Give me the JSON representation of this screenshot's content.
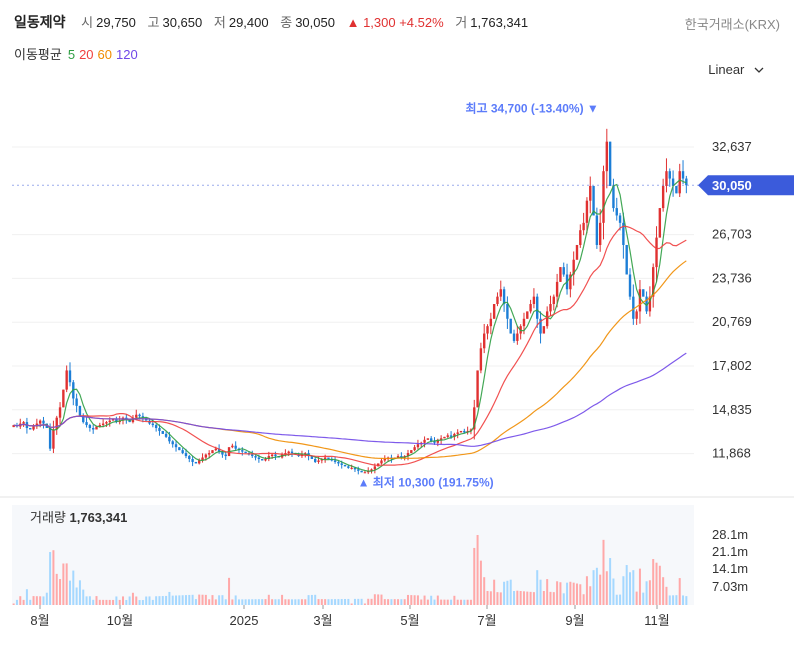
{
  "header": {
    "name": "일동제약",
    "open_label": "시",
    "open": "29,750",
    "high_label": "고",
    "high": "30,650",
    "low_label": "저",
    "low": "29,400",
    "close_label": "종",
    "close": "30,050",
    "change": "▲ 1,300 +4.52%",
    "volume_label": "거",
    "volume": "1,763,341",
    "exchange": "한국거래소(KRX)"
  },
  "ma": {
    "label": "이동평균",
    "periods": [
      "5",
      "20",
      "60",
      "120"
    ],
    "colors": [
      "#2f9e44",
      "#f03e3e",
      "#f08c00",
      "#7048e8"
    ]
  },
  "scale_selector": {
    "label": "Linear",
    "icon": "chevron-down-icon"
  },
  "colors": {
    "up": "#e03131",
    "down": "#1c7ed6",
    "price_tag": "#3b5bdb"
  },
  "chart_data": [
    {
      "type": "candlestick",
      "title": "",
      "price_ticks": [
        11868,
        14835,
        17802,
        20769,
        23736,
        26703,
        32637
      ],
      "price_tick_labels": [
        "11,868",
        "14,835",
        "17,802",
        "20,769",
        "23,736",
        "26,703",
        "32,637"
      ],
      "ylim": [
        9400,
        36500
      ],
      "x_tick_labels": [
        "8월",
        "10월",
        "2025",
        "3월",
        "5월",
        "7월",
        "9월",
        "11월"
      ],
      "current_price": 30050,
      "current_price_label": "30,050",
      "high_annotation": {
        "value": 34700,
        "text": "최고 34,700 (-13.40%) ▼"
      },
      "low_annotation": {
        "value": 10300,
        "text": "▲ 최저 10,300 (191.75%)"
      },
      "close_series": [
        13800,
        13700,
        13900,
        14000,
        13600,
        13500,
        13700,
        13900,
        14100,
        13900,
        13600,
        12200,
        13500,
        14300,
        15000,
        16200,
        17500,
        16700,
        15600,
        15100,
        14400,
        14000,
        13800,
        13600,
        13500,
        13700,
        13800,
        13900,
        14000,
        14100,
        14200,
        14000,
        14100,
        14300,
        14200,
        14000,
        14300,
        14500,
        14400,
        14300,
        14100,
        13900,
        13800,
        13600,
        13400,
        13200,
        13000,
        12700,
        12500,
        12300,
        12100,
        11900,
        11700,
        11500,
        11300,
        11200,
        11400,
        11600,
        11800,
        11900,
        12100,
        12200,
        12000,
        11800,
        11700,
        12300,
        12400,
        12200,
        12100,
        12000,
        11900,
        11800,
        11700,
        11600,
        11500,
        11400,
        11500,
        11700,
        11800,
        11700,
        11600,
        11800,
        11900,
        12000,
        11900,
        11800,
        11700,
        11800,
        11900,
        11700,
        11500,
        11300,
        11400,
        11500,
        11600,
        11500,
        11400,
        11300,
        11200,
        11100,
        11000,
        10900,
        10900,
        10800,
        10700,
        10600,
        10600,
        10700,
        10800,
        11000,
        11200,
        11400,
        11500,
        11600,
        11500,
        11600,
        11700,
        11600,
        11700,
        11900,
        12100,
        12300,
        12500,
        12600,
        12800,
        12900,
        12700,
        12600,
        12800,
        12900,
        13000,
        13100,
        13000,
        13200,
        13300,
        13400,
        13300,
        13400,
        13500,
        15000,
        17500,
        19000,
        20000,
        20500,
        21000,
        22000,
        22500,
        23000,
        22000,
        21000,
        20000,
        19500,
        20000,
        20500,
        21000,
        21500,
        22000,
        22500,
        21000,
        20000,
        20500,
        21500,
        22000,
        22500,
        23500,
        24500,
        24000,
        23000,
        24000,
        25000,
        26000,
        27000,
        27500,
        29000,
        30000,
        28000,
        26000,
        27500,
        31000,
        33000,
        30000,
        28500,
        28000,
        27500,
        26000,
        24000,
        22500,
        21000,
        21500,
        23000,
        22500,
        21500,
        22500,
        24500,
        26500,
        28500,
        30000,
        31000,
        30500,
        30000,
        29500,
        31000,
        30500,
        30050
      ],
      "volume_ticks": [
        "28.1m",
        "21.1m",
        "14.1m",
        "7.03m"
      ],
      "volume_label": "거래량",
      "volume_value": "1,763,341"
    }
  ]
}
